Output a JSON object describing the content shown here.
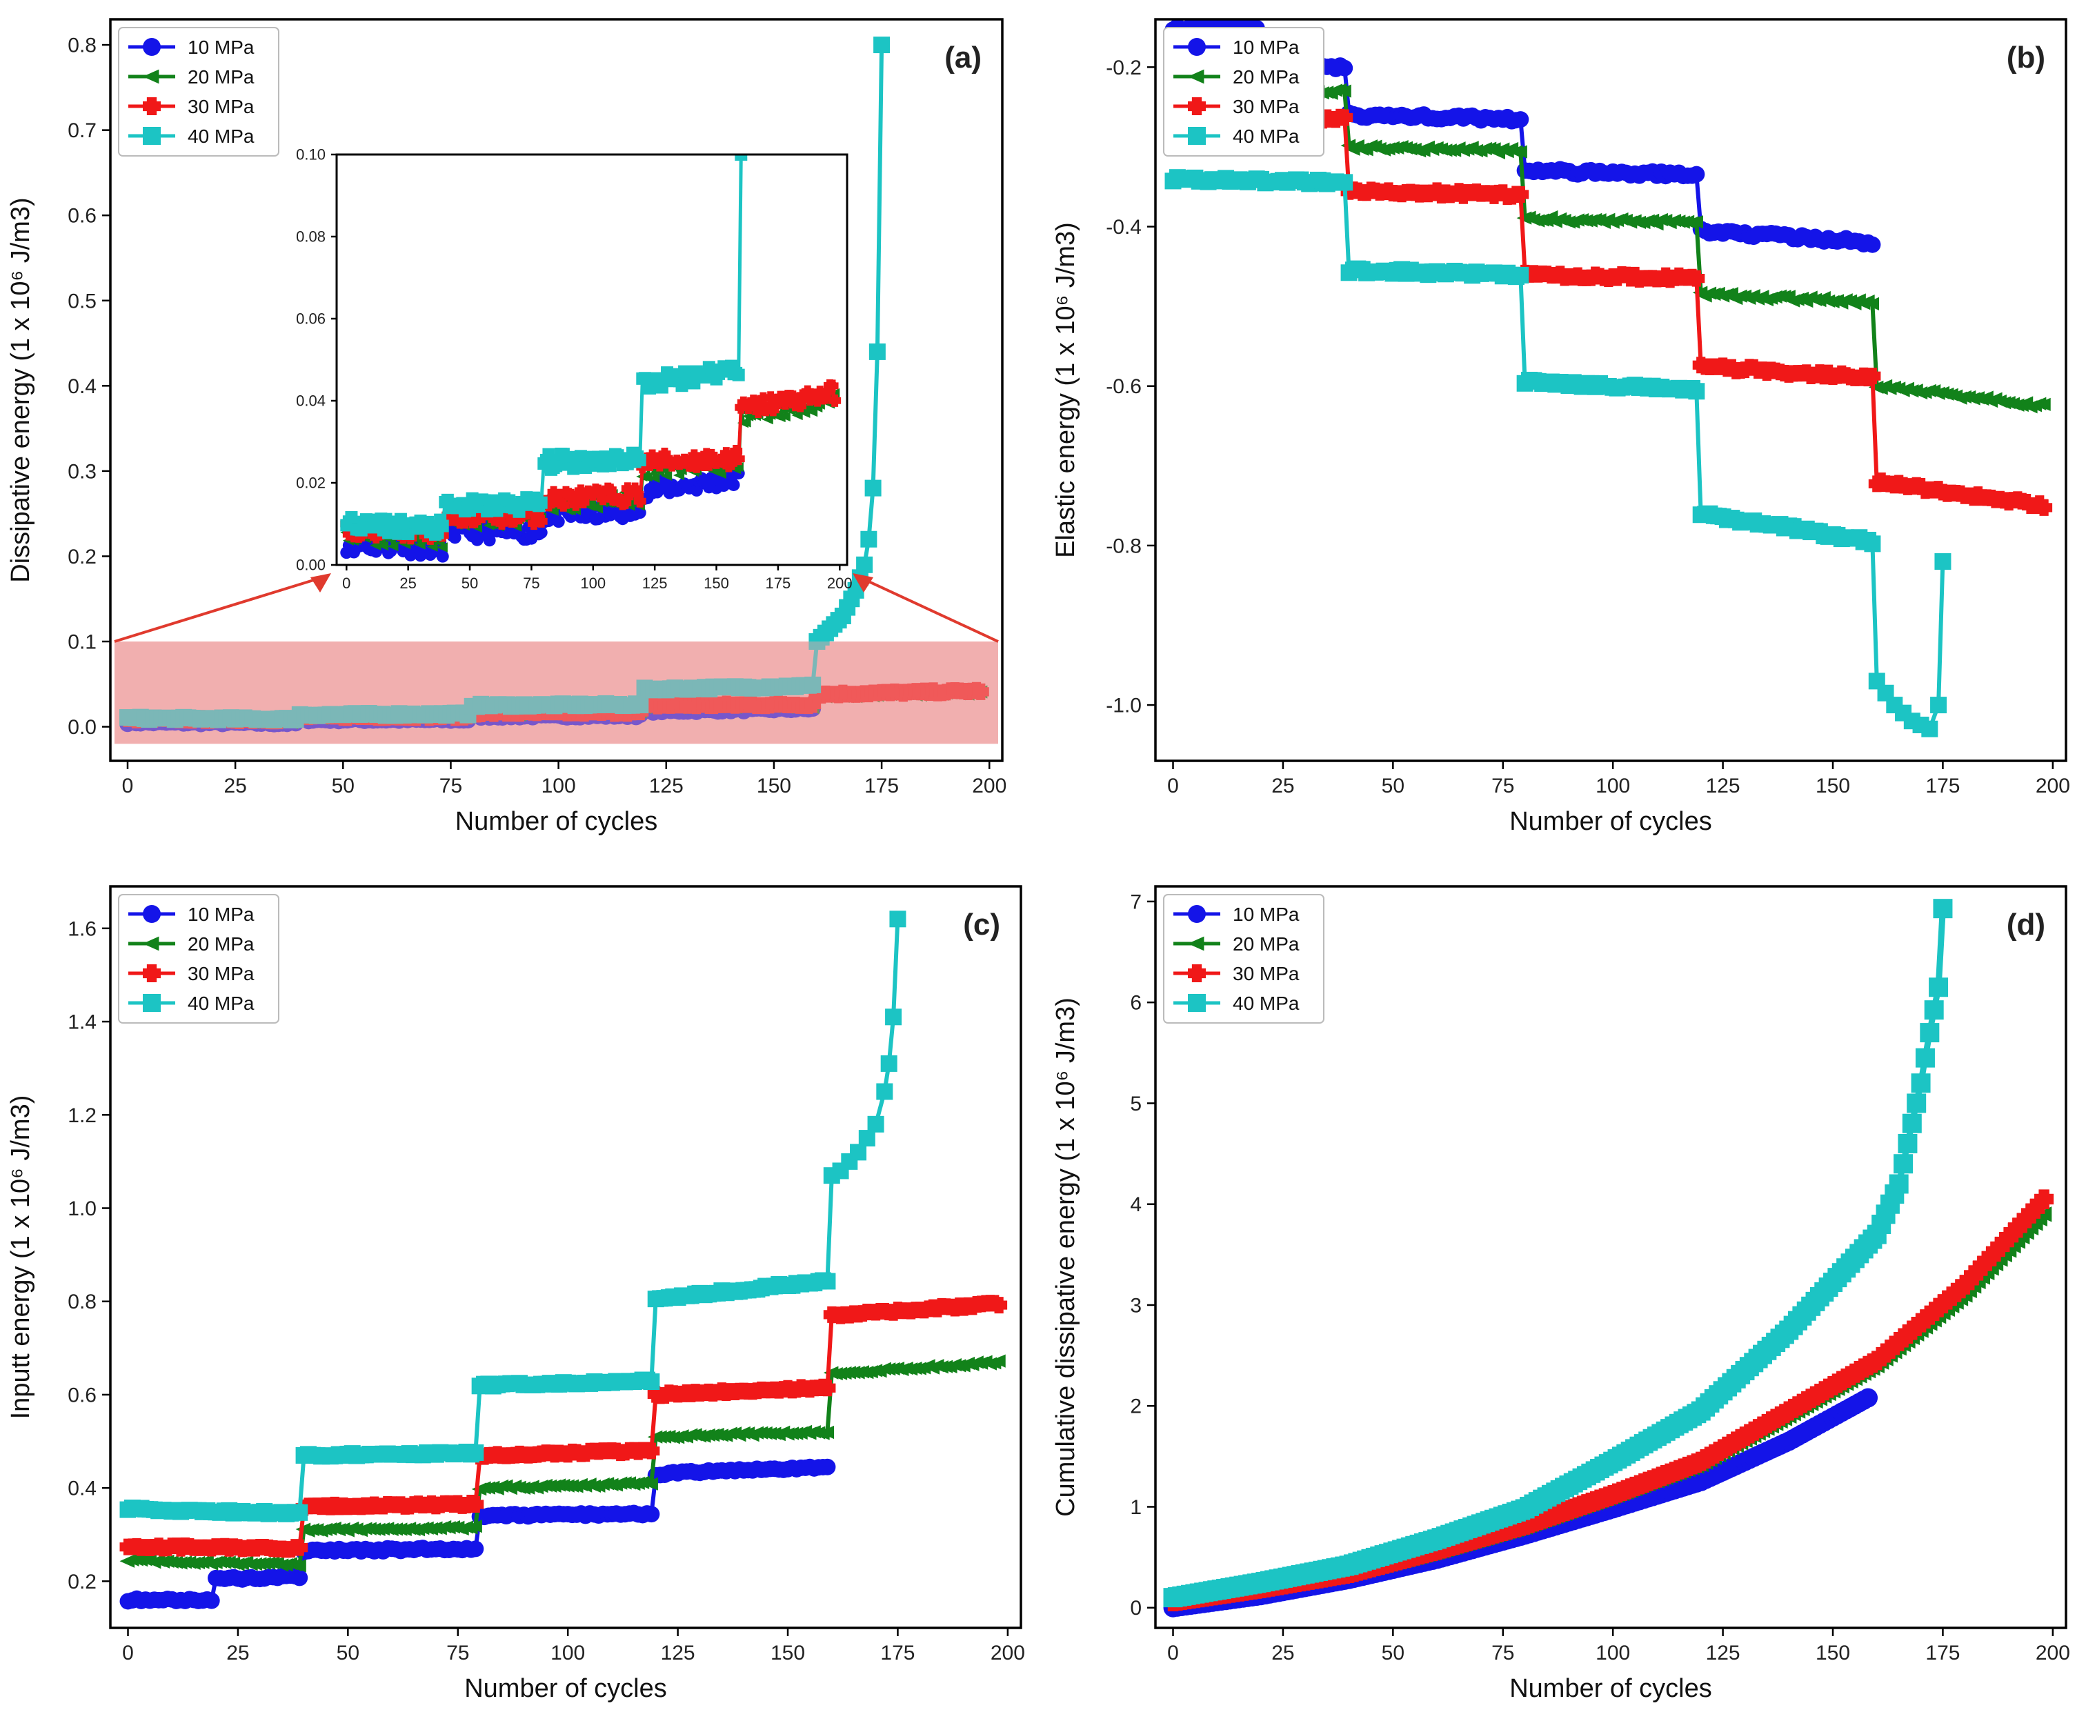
{
  "colors": {
    "p10": "#1414e8",
    "p20": "#12821a",
    "p30": "#f01818",
    "p40": "#1cc4c4",
    "zoom_box": "#f0a8a8",
    "zoom_arrow": "#e03a2e"
  },
  "chart_data": [
    {
      "id": "a",
      "type": "line",
      "panel_label": "(a)",
      "xlabel": "Number of cycles",
      "ylabel": "Dissipative energy (1 x 10⁶ J/m3)",
      "xlim": [
        -4,
        203
      ],
      "ylim": [
        -0.04,
        0.83
      ],
      "xticks": [
        0,
        25,
        50,
        75,
        100,
        125,
        150,
        175,
        200
      ],
      "yticks": [
        0.0,
        0.1,
        0.2,
        0.3,
        0.4,
        0.5,
        0.6,
        0.7,
        0.8
      ],
      "ytick_labels": [
        "0.0",
        "0.1",
        "0.2",
        "0.3",
        "0.4",
        "0.5",
        "0.6",
        "0.7",
        "0.8"
      ],
      "legend": [
        "10 MPa",
        "20 MPa",
        "30 MPa",
        "40 MPa"
      ],
      "series": [
        {
          "name": "10 MPa",
          "steps": [
            [
              0,
              40,
              0.005,
              0.004
            ],
            [
              40,
              80,
              0.008,
              0.008
            ],
            [
              80,
              120,
              0.012,
              0.013
            ],
            [
              120,
              160,
              0.018,
              0.021
            ]
          ]
        },
        {
          "name": "20 MPa",
          "steps": [
            [
              0,
              40,
              0.007,
              0.006
            ],
            [
              40,
              80,
              0.011,
              0.011
            ],
            [
              80,
              120,
              0.015,
              0.016
            ],
            [
              120,
              160,
              0.023,
              0.024
            ],
            [
              160,
              199,
              0.036,
              0.04
            ]
          ]
        },
        {
          "name": "30 MPa",
          "steps": [
            [
              0,
              40,
              0.009,
              0.008
            ],
            [
              40,
              80,
              0.012,
              0.012
            ],
            [
              80,
              120,
              0.016,
              0.017
            ],
            [
              120,
              160,
              0.025,
              0.026
            ],
            [
              160,
              199,
              0.038,
              0.042
            ]
          ]
        },
        {
          "name": "40 MPa",
          "steps": [
            [
              0,
              40,
              0.01,
              0.009
            ],
            [
              40,
              80,
              0.014,
              0.015
            ],
            [
              80,
              120,
              0.025,
              0.026
            ],
            [
              120,
              160,
              0.044,
              0.048
            ]
          ],
          "tail": [
            [
              160,
              0.1
            ],
            [
              161,
              0.105
            ],
            [
              162,
              0.11
            ],
            [
              163,
              0.115
            ],
            [
              164,
              0.12
            ],
            [
              165,
              0.125
            ],
            [
              166,
              0.13
            ],
            [
              167,
              0.14
            ],
            [
              168,
              0.15
            ],
            [
              169,
              0.16
            ],
            [
              170,
              0.175
            ],
            [
              171,
              0.19
            ],
            [
              172,
              0.22
            ],
            [
              173,
              0.28
            ],
            [
              174,
              0.44
            ],
            [
              175,
              0.8
            ]
          ]
        }
      ],
      "highlight_band": [
        0.0,
        0.1
      ],
      "inset": {
        "xlim": [
          -4,
          203
        ],
        "ylim": [
          0.0,
          0.1
        ],
        "xticks": [
          0,
          25,
          50,
          75,
          100,
          125,
          150,
          175,
          200
        ],
        "yticks": [
          0.0,
          0.02,
          0.04,
          0.06,
          0.08,
          0.1
        ],
        "ytick_labels": [
          "0.00",
          "0.02",
          "0.04",
          "0.06",
          "0.08",
          "0.10"
        ],
        "extra_40_tail": [
          [
            160,
            0.1
          ]
        ]
      }
    },
    {
      "id": "b",
      "type": "line",
      "panel_label": "(b)",
      "xlabel": "Number of cycles",
      "ylabel": "Elastic energy (1 x 10⁶ J/m3)",
      "xlim": [
        -4,
        203
      ],
      "ylim": [
        -1.07,
        -0.14
      ],
      "xticks": [
        0,
        25,
        50,
        75,
        100,
        125,
        150,
        175,
        200
      ],
      "yticks": [
        -1.0,
        -0.8,
        -0.6,
        -0.4,
        -0.2
      ],
      "ytick_labels": [
        "-1.0",
        "-0.8",
        "-0.6",
        "-0.4",
        "-0.2"
      ],
      "legend": [
        "10 MPa",
        "20 MPa",
        "30 MPa",
        "40 MPa"
      ],
      "series": [
        {
          "name": "10 MPa",
          "steps": [
            [
              0,
              20,
              -0.15,
              -0.15
            ],
            [
              20,
              40,
              -0.2,
              -0.2
            ],
            [
              40,
              80,
              -0.26,
              -0.265
            ],
            [
              80,
              120,
              -0.33,
              -0.335
            ],
            [
              120,
              160,
              -0.405,
              -0.42
            ]
          ]
        },
        {
          "name": "20 MPa",
          "steps": [
            [
              0,
              40,
              -0.23,
              -0.23
            ],
            [
              40,
              80,
              -0.3,
              -0.305
            ],
            [
              80,
              120,
              -0.39,
              -0.395
            ],
            [
              120,
              160,
              -0.485,
              -0.495
            ],
            [
              160,
              199,
              -0.6,
              -0.625
            ]
          ]
        },
        {
          "name": "30 MPa",
          "steps": [
            [
              0,
              40,
              -0.26,
              -0.265
            ],
            [
              40,
              80,
              -0.355,
              -0.36
            ],
            [
              80,
              120,
              -0.46,
              -0.465
            ],
            [
              120,
              160,
              -0.575,
              -0.59
            ],
            [
              160,
              199,
              -0.72,
              -0.75
            ]
          ]
        },
        {
          "name": "40 MPa",
          "steps": [
            [
              0,
              40,
              -0.34,
              -0.345
            ],
            [
              40,
              80,
              -0.455,
              -0.46
            ],
            [
              80,
              120,
              -0.595,
              -0.605
            ],
            [
              120,
              160,
              -0.76,
              -0.795
            ]
          ],
          "tail": [
            [
              160,
              -0.97
            ],
            [
              162,
              -0.985
            ],
            [
              164,
              -1.0
            ],
            [
              166,
              -1.01
            ],
            [
              168,
              -1.02
            ],
            [
              170,
              -1.025
            ],
            [
              172,
              -1.03
            ],
            [
              174,
              -1.0
            ],
            [
              175,
              -0.82
            ]
          ]
        }
      ]
    },
    {
      "id": "c",
      "type": "line",
      "panel_label": "(c)",
      "xlabel": "Number of cycles",
      "ylabel": "Inputt energy (1 x 10⁶ J/m3)",
      "xlim": [
        -4,
        203
      ],
      "ylim": [
        0.1,
        1.69
      ],
      "xticks": [
        0,
        25,
        50,
        75,
        100,
        125,
        150,
        175,
        200
      ],
      "yticks": [
        0.2,
        0.4,
        0.6,
        0.8,
        1.0,
        1.2,
        1.4,
        1.6
      ],
      "ytick_labels": [
        "0.2",
        "0.4",
        "0.6",
        "0.8",
        "1.0",
        "1.2",
        "1.4",
        "1.6"
      ],
      "legend": [
        "10 MPa",
        "20 MPa",
        "30 MPa",
        "40 MPa"
      ],
      "series": [
        {
          "name": "10 MPa",
          "steps": [
            [
              0,
              20,
              0.16,
              0.16
            ],
            [
              20,
              40,
              0.205,
              0.21
            ],
            [
              40,
              80,
              0.265,
              0.27
            ],
            [
              80,
              120,
              0.34,
              0.345
            ],
            [
              120,
              160,
              0.43,
              0.445
            ]
          ]
        },
        {
          "name": "20 MPa",
          "steps": [
            [
              0,
              40,
              0.245,
              0.235
            ],
            [
              40,
              80,
              0.31,
              0.315
            ],
            [
              80,
              120,
              0.4,
              0.41
            ],
            [
              120,
              160,
              0.51,
              0.52
            ],
            [
              160,
              199,
              0.645,
              0.67
            ]
          ]
        },
        {
          "name": "30 MPa",
          "steps": [
            [
              0,
              40,
              0.275,
              0.27
            ],
            [
              40,
              80,
              0.36,
              0.365
            ],
            [
              80,
              120,
              0.47,
              0.48
            ],
            [
              120,
              160,
              0.6,
              0.615
            ],
            [
              160,
              199,
              0.77,
              0.795
            ]
          ]
        },
        {
          "name": "40 MPa",
          "steps": [
            [
              0,
              40,
              0.355,
              0.345
            ],
            [
              40,
              80,
              0.47,
              0.475
            ],
            [
              80,
              120,
              0.62,
              0.63
            ],
            [
              120,
              160,
              0.805,
              0.845
            ]
          ],
          "tail": [
            [
              160,
              1.07
            ],
            [
              162,
              1.08
            ],
            [
              164,
              1.1
            ],
            [
              166,
              1.12
            ],
            [
              168,
              1.15
            ],
            [
              170,
              1.18
            ],
            [
              172,
              1.25
            ],
            [
              173,
              1.31
            ],
            [
              174,
              1.41
            ],
            [
              175,
              1.62
            ]
          ]
        }
      ]
    },
    {
      "id": "d",
      "type": "line",
      "panel_label": "(d)",
      "xlabel": "Number of cycles",
      "ylabel": "Cumulative dissipative energy (1 x 10⁶ J/m3)",
      "xlim": [
        -4,
        203
      ],
      "ylim": [
        -0.2,
        7.15
      ],
      "xticks": [
        0,
        25,
        50,
        75,
        100,
        125,
        150,
        175,
        200
      ],
      "yticks": [
        0,
        1,
        2,
        3,
        4,
        5,
        6,
        7
      ],
      "ytick_labels": [
        "0",
        "1",
        "2",
        "3",
        "4",
        "5",
        "6",
        "7"
      ],
      "legend": [
        "10 MPa",
        "20 MPa",
        "30 MPa",
        "40 MPa"
      ],
      "series": [
        {
          "name": "10 MPa",
          "points": [
            [
              0,
              0.0
            ],
            [
              20,
              0.12
            ],
            [
              40,
              0.28
            ],
            [
              60,
              0.48
            ],
            [
              80,
              0.72
            ],
            [
              100,
              0.98
            ],
            [
              120,
              1.25
            ],
            [
              140,
              1.65
            ],
            [
              158,
              2.08
            ]
          ]
        },
        {
          "name": "20 MPa",
          "points": [
            [
              0,
              0.05
            ],
            [
              20,
              0.18
            ],
            [
              40,
              0.33
            ],
            [
              60,
              0.55
            ],
            [
              80,
              0.8
            ],
            [
              100,
              1.1
            ],
            [
              120,
              1.42
            ],
            [
              140,
              1.9
            ],
            [
              160,
              2.4
            ],
            [
              180,
              3.1
            ],
            [
              198,
              3.9
            ]
          ]
        },
        {
          "name": "30 MPa",
          "points": [
            [
              0,
              0.06
            ],
            [
              20,
              0.19
            ],
            [
              40,
              0.34
            ],
            [
              60,
              0.57
            ],
            [
              80,
              0.82
            ],
            [
              100,
              1.12
            ],
            [
              120,
              1.45
            ],
            [
              140,
              1.95
            ],
            [
              160,
              2.45
            ],
            [
              180,
              3.2
            ],
            [
              198,
              4.05
            ]
          ]
        },
        {
          "name": "40 MPa",
          "points": [
            [
              0,
              0.1
            ],
            [
              20,
              0.25
            ],
            [
              40,
              0.42
            ],
            [
              60,
              0.68
            ],
            [
              80,
              0.98
            ],
            [
              100,
              1.45
            ],
            [
              120,
              1.95
            ],
            [
              140,
              2.75
            ],
            [
              160,
              3.7
            ],
            [
              165,
              4.2
            ],
            [
              170,
              5.2
            ],
            [
              172,
              5.7
            ],
            [
              174,
              6.15
            ],
            [
              175,
              6.93
            ]
          ]
        }
      ]
    }
  ]
}
